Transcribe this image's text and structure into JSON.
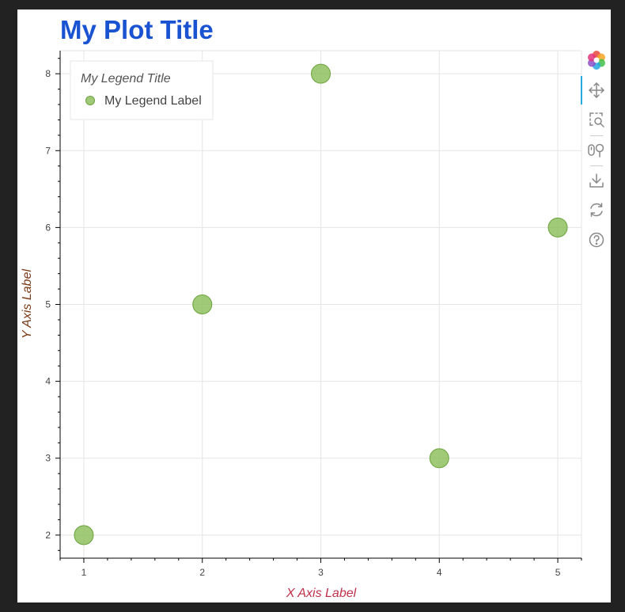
{
  "chart_data": {
    "type": "scatter",
    "title": "My Plot Title",
    "xlabel": "X Axis Label",
    "ylabel": "Y Axis Label",
    "xlim": [
      0.8,
      5.2
    ],
    "ylim": [
      1.7,
      8.3
    ],
    "x_ticks": [
      1,
      2,
      3,
      4,
      5
    ],
    "y_ticks": [
      2,
      3,
      4,
      5,
      6,
      7,
      8
    ],
    "grid": true,
    "legend": {
      "title": "My Legend Title",
      "placement": "top-left",
      "entries": [
        "My Legend Label"
      ]
    },
    "series": [
      {
        "name": "My Legend Label",
        "x": [
          1,
          2,
          3,
          4,
          5
        ],
        "y": [
          2,
          5,
          8,
          3,
          6
        ],
        "color": "#8fc060"
      }
    ]
  },
  "colors": {
    "title": "#1a53d1",
    "xlabel": "#c0304a",
    "ylabel": "#7a3a16",
    "marker_fill": "#8fc060",
    "marker_stroke": "#6aa33c",
    "grid": "#e5e5e5",
    "tick_text": "#444444"
  },
  "toolbar": {
    "tools": [
      "bokeh-logo-icon",
      "pan-icon",
      "box-zoom-icon",
      "wheel-zoom-icon",
      "save-icon",
      "reset-icon",
      "help-icon"
    ]
  }
}
